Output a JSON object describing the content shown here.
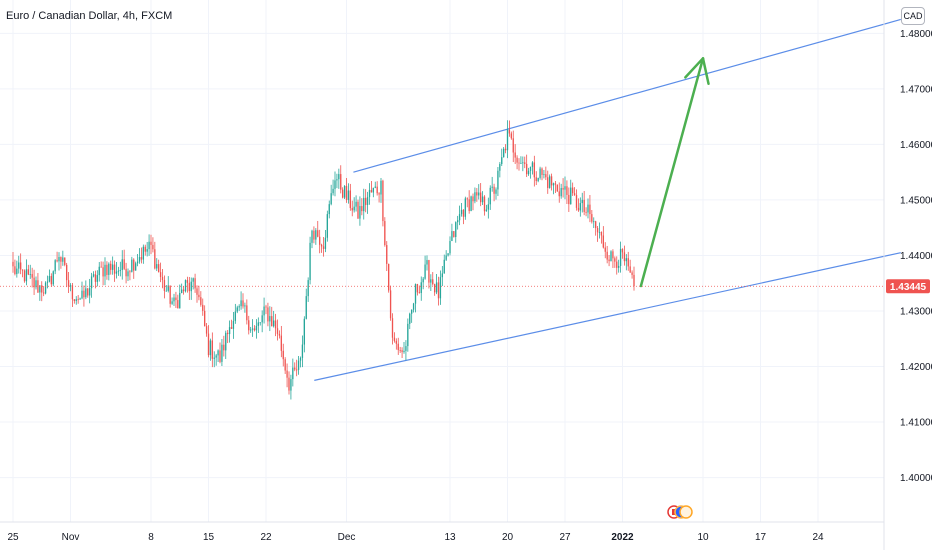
{
  "header": {
    "title": "Euro / Canadian Dollar, 4h, FXCM",
    "currency_badge": "CAD"
  },
  "colors": {
    "up": "#26a69a",
    "down": "#ef5350",
    "channel": "#5b8de8",
    "arrow": "#4caf50",
    "grid": "#f0f3fa",
    "price_tag": "#ef5350"
  },
  "chart_data": {
    "type": "candlestick",
    "symbol": "Euro / Canadian Dollar",
    "interval": "4h",
    "source": "FXCM",
    "ylim": [
      1.392,
      1.486
    ],
    "y_ticks": [
      "1.48000",
      "1.47000",
      "1.46000",
      "1.45000",
      "1.44000",
      "1.43000",
      "1.42000",
      "1.41000",
      "1.40000"
    ],
    "x_ticks": [
      {
        "label": "25",
        "x": 0
      },
      {
        "label": "Nov",
        "x": 5
      },
      {
        "label": "8",
        "x": 12
      },
      {
        "label": "15",
        "x": 17
      },
      {
        "label": "22",
        "x": 22
      },
      {
        "label": "Dec",
        "x": 29
      },
      {
        "label": "13",
        "x": 38
      },
      {
        "label": "20",
        "x": 43
      },
      {
        "label": "27",
        "x": 48
      },
      {
        "label": "2022",
        "x": 53,
        "bold": true
      },
      {
        "label": "10",
        "x": 60
      },
      {
        "label": "17",
        "x": 65
      },
      {
        "label": "24",
        "x": 70
      }
    ],
    "current_price": "1.43445",
    "current_price_value": 1.43445,
    "price_path": [
      [
        0,
        1.4375
      ],
      [
        1,
        1.4365
      ],
      [
        2,
        1.4345
      ],
      [
        3,
        1.434
      ],
      [
        4,
        1.4405
      ],
      [
        5,
        1.4335
      ],
      [
        6,
        1.432
      ],
      [
        7,
        1.4355
      ],
      [
        8,
        1.438
      ],
      [
        9,
        1.4375
      ],
      [
        10,
        1.438
      ],
      [
        11,
        1.44
      ],
      [
        12,
        1.4415
      ],
      [
        13,
        1.435
      ],
      [
        14,
        1.431
      ],
      [
        15,
        1.4345
      ],
      [
        16,
        1.434
      ],
      [
        17,
        1.4235
      ],
      [
        18,
        1.4215
      ],
      [
        19,
        1.4285
      ],
      [
        20,
        1.4305
      ],
      [
        21,
        1.426
      ],
      [
        22,
        1.43
      ],
      [
        23,
        1.4265
      ],
      [
        24,
        1.417
      ],
      [
        25,
        1.4205
      ],
      [
        26,
        1.445
      ],
      [
        27,
        1.4425
      ],
      [
        28,
        1.4545
      ],
      [
        29,
        1.4505
      ],
      [
        30,
        1.4475
      ],
      [
        31,
        1.451
      ],
      [
        32,
        1.4525
      ],
      [
        33,
        1.4245
      ],
      [
        34,
        1.4225
      ],
      [
        35,
        1.4335
      ],
      [
        36,
        1.4375
      ],
      [
        37,
        1.433
      ],
      [
        38,
        1.442
      ],
      [
        39,
        1.448
      ],
      [
        40,
        1.4505
      ],
      [
        41,
        1.449
      ],
      [
        42,
        1.4525
      ],
      [
        43,
        1.4615
      ],
      [
        44,
        1.4575
      ],
      [
        45,
        1.4555
      ],
      [
        46,
        1.4545
      ],
      [
        47,
        1.4525
      ],
      [
        48,
        1.4515
      ],
      [
        49,
        1.4495
      ],
      [
        50,
        1.4475
      ],
      [
        51,
        1.4435
      ],
      [
        52,
        1.4395
      ],
      [
        53,
        1.4395
      ],
      [
        54,
        1.4345
      ]
    ],
    "channel_upper": [
      [
        29.6,
        1.455
      ],
      [
        77.2,
        1.4825
      ]
    ],
    "channel_lower": [
      [
        26.2,
        1.4175
      ],
      [
        77.2,
        1.4405
      ]
    ],
    "projection_arrow": {
      "from": [
        54.6,
        1.4345
      ],
      "to": [
        60,
        1.4755
      ]
    }
  }
}
